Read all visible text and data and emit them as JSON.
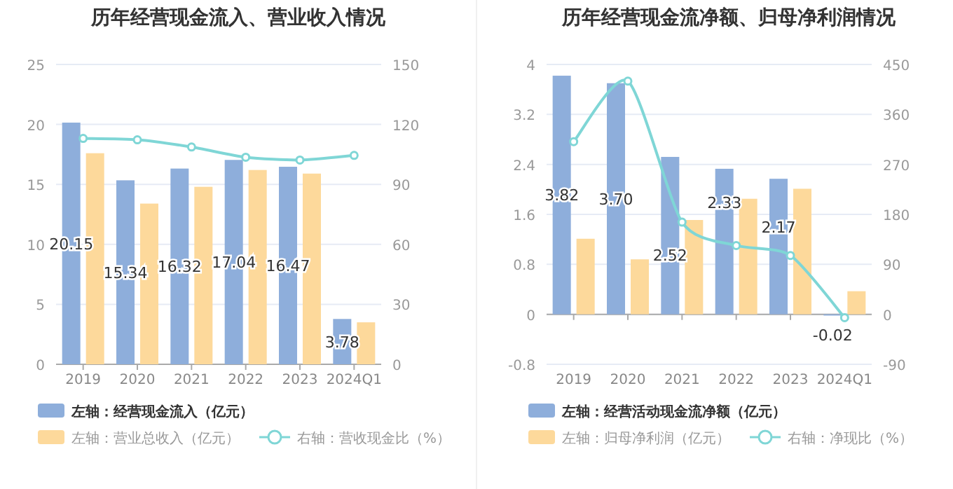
{
  "chart_data": [
    {
      "type": "bar",
      "title": "历年经营现金流入、营业收入情况",
      "categories": [
        "2019",
        "2020",
        "2021",
        "2022",
        "2023",
        "2024Q1"
      ],
      "ylim": [
        0,
        25
      ],
      "yticks": [
        0,
        5,
        10,
        15,
        20,
        25
      ],
      "y2lim": [
        0,
        150
      ],
      "y2ticks": [
        0,
        30,
        60,
        90,
        120,
        150
      ],
      "grid": "y",
      "legend": "bottom",
      "series": [
        {
          "name": "左轴：经营现金流入（亿元）",
          "color": "#8eaedb",
          "values": [
            20.15,
            15.34,
            16.32,
            17.04,
            16.47,
            3.78
          ],
          "value_labels": [
            "20.15",
            "15.34",
            "16.32",
            "17.04",
            "16.47",
            "3.78"
          ]
        },
        {
          "name": "左轴：营业总收入（亿元）",
          "color": "#fdd99b",
          "values": [
            17.6,
            13.4,
            14.8,
            16.2,
            15.9,
            3.5
          ]
        },
        {
          "name": "右轴：营收现金比（%）",
          "type": "line",
          "axis": "y2",
          "color": "#7fd6d6",
          "marker": "circle",
          "values": [
            113,
            112.3,
            108.7,
            103.6,
            102.2,
            104.5
          ]
        }
      ]
    },
    {
      "type": "bar",
      "title": "历年经营现金流净额、归母净利润情况",
      "categories": [
        "2019",
        "2020",
        "2021",
        "2022",
        "2023",
        "2024Q1"
      ],
      "ylim": [
        -0.8,
        4
      ],
      "yticks": [
        -0.8,
        0,
        0.8,
        1.6,
        2.4,
        3.2,
        4
      ],
      "y2lim": [
        -90,
        450
      ],
      "y2ticks": [
        -90,
        0,
        90,
        180,
        270,
        360,
        450
      ],
      "grid": "y",
      "legend": "bottom",
      "series": [
        {
          "name": "左轴：经营活动现金流净额（亿元）",
          "color": "#8eaedb",
          "values": [
            3.82,
            3.7,
            2.52,
            2.33,
            2.17,
            -0.02
          ],
          "value_labels": [
            "3.82",
            "3.70",
            "2.52",
            "2.33",
            "2.17",
            "-0.02"
          ]
        },
        {
          "name": "左轴：归母净利润（亿元）",
          "color": "#fdd99b",
          "values": [
            1.21,
            0.88,
            1.51,
            1.85,
            2.01,
            0.37
          ]
        },
        {
          "name": "右轴：净现比（%）",
          "type": "line",
          "axis": "y2",
          "color": "#7fd6d6",
          "marker": "circle",
          "values": [
            311,
            420,
            166,
            124,
            106,
            -6
          ]
        }
      ]
    }
  ]
}
